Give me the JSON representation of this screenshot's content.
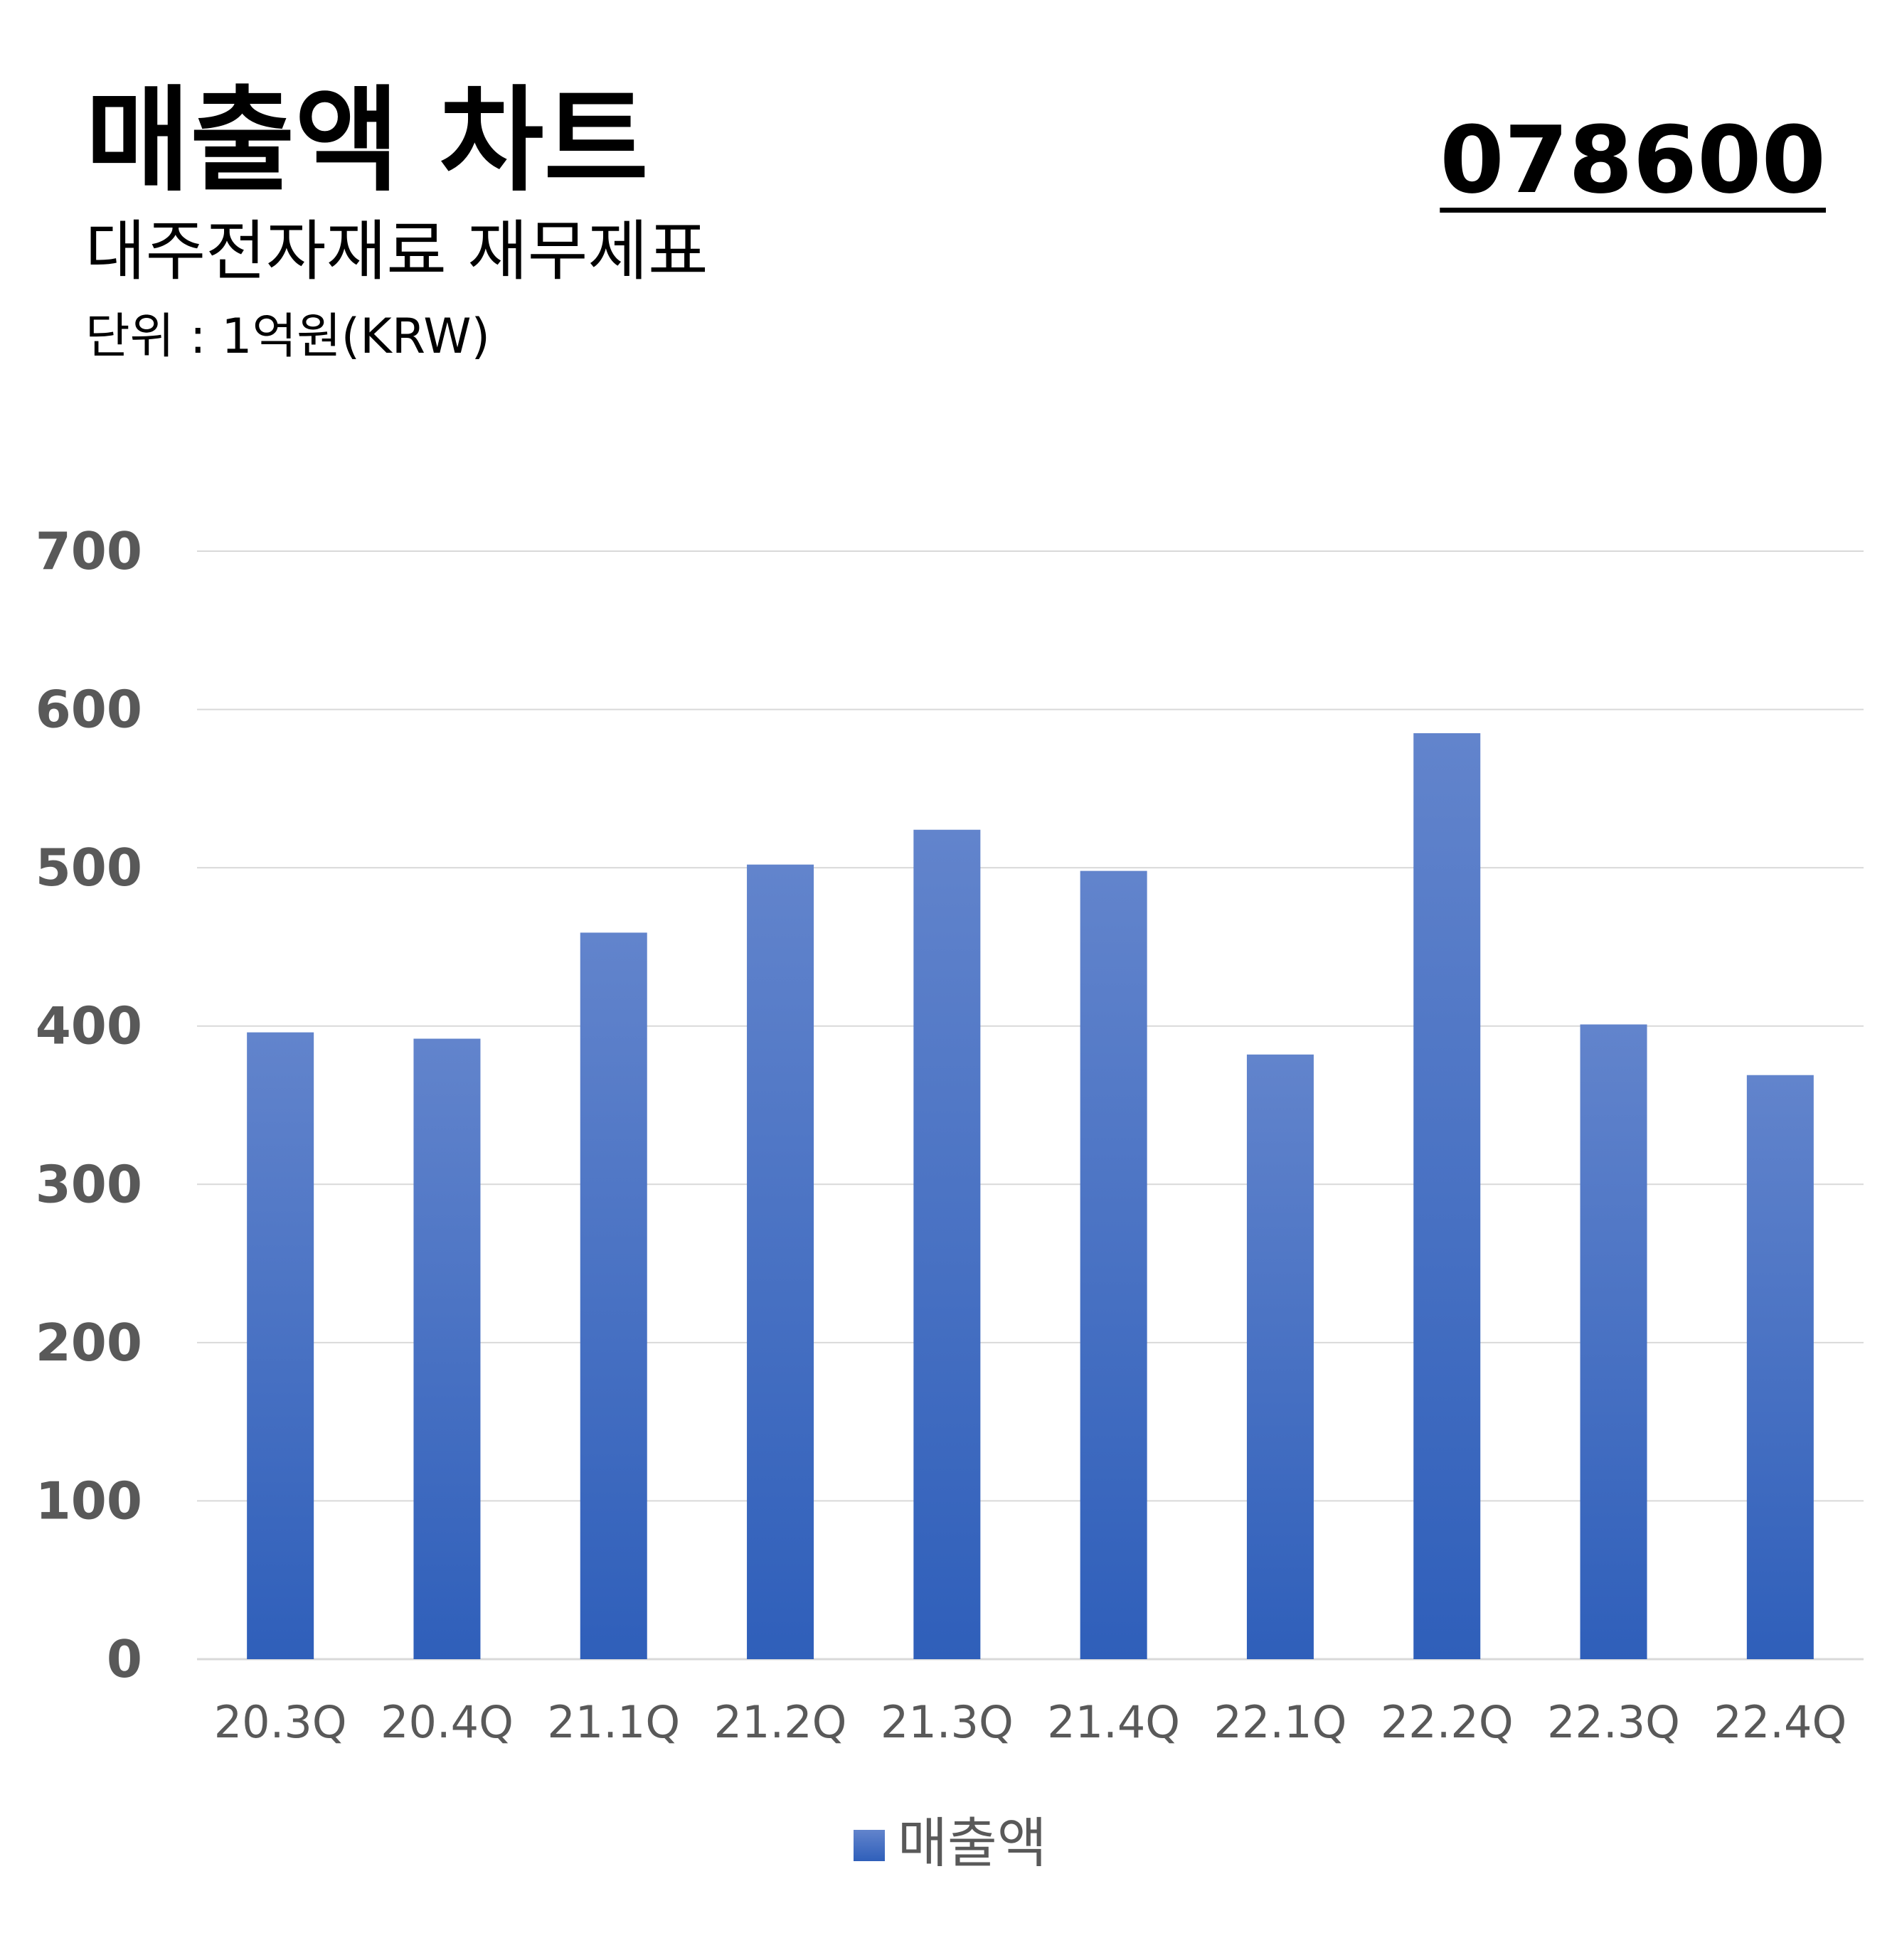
{
  "header": {
    "title": "매출액 차트",
    "subtitle": "대주전자재료 재무제표",
    "unit": "단위 : 1억원(KRW)",
    "code": "078600"
  },
  "colors": {
    "bar_top": "#6284cc",
    "bar_bottom": "#2f5fba",
    "grid": "#d9d9d9",
    "tick_text": "#595959"
  },
  "chart_data": {
    "type": "bar",
    "categories": [
      "20.3Q",
      "20.4Q",
      "21.1Q",
      "21.2Q",
      "21.3Q",
      "21.4Q",
      "22.1Q",
      "22.2Q",
      "22.3Q",
      "22.4Q"
    ],
    "series": [
      {
        "name": "매출액",
        "values": [
          396,
          392,
          459,
          502,
          524,
          498,
          382,
          585,
          401,
          369
        ]
      }
    ],
    "ylim": [
      0,
      700
    ],
    "yticks": [
      0,
      100,
      200,
      300,
      400,
      500,
      600,
      700
    ],
    "grid": true,
    "legend": "bottom-center"
  }
}
